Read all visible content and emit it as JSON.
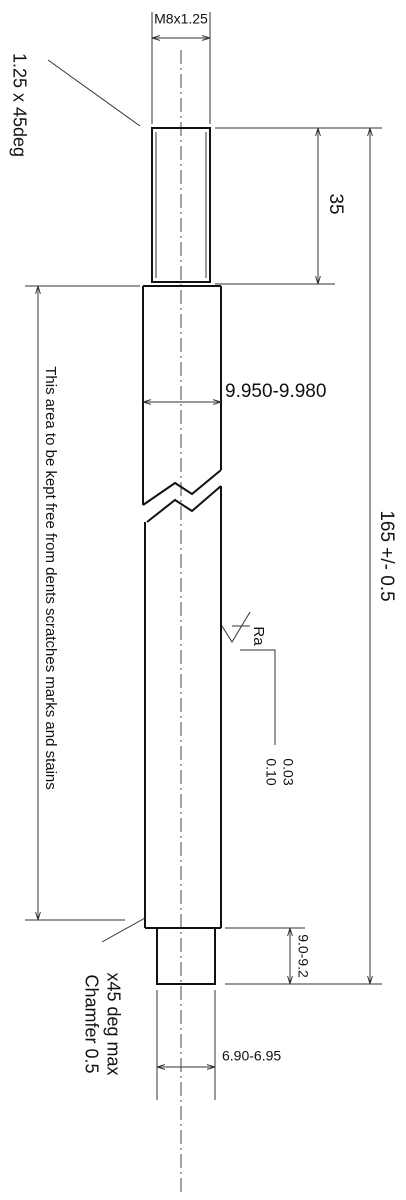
{
  "dimensions": {
    "thread": "M8x1.25",
    "thread_chamfer": "1.25 x 45deg",
    "thread_length": "35",
    "shaft_diameter": "9.950-9.980",
    "overall_length": "165 +/- 0.5",
    "surface_note": "This area to be kept free from dents scratches marks and stains",
    "roughness_symbol": "Ra",
    "roughness_upper": "0.03",
    "roughness_lower": "0.10",
    "pin_length": "9.0-9.2",
    "chamfer_line1": "Chamfer 0.5",
    "chamfer_line2": "x45 deg max",
    "pin_diameter": "6.90-6.95"
  }
}
